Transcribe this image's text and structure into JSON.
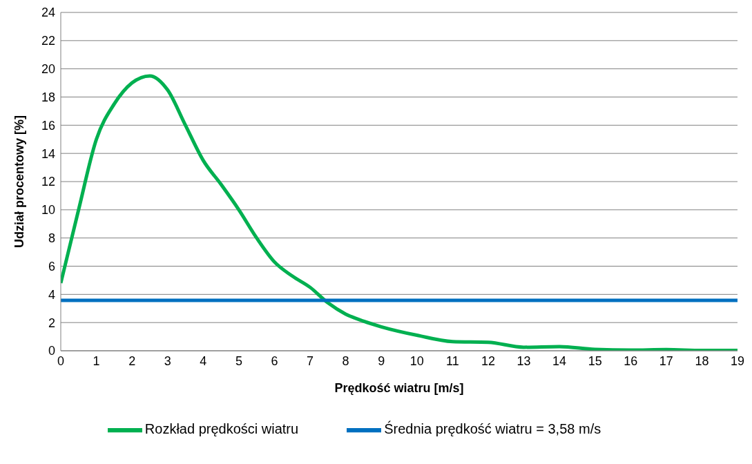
{
  "chart_data": {
    "type": "line",
    "xlabel": "Prędkość wiatru [m/s]",
    "ylabel": "Udział procentowy [%]",
    "series": [
      {
        "name": "Rozkład prędkości wiatru",
        "color": "#00b050",
        "x": [
          0,
          0.5,
          1,
          1.5,
          2,
          2.5,
          3,
          3.5,
          4,
          4.5,
          5,
          5.5,
          6,
          6.5,
          7,
          7.5,
          8,
          8.5,
          9,
          10,
          11,
          12,
          13,
          14,
          15,
          16,
          17,
          18,
          19
        ],
        "values": [
          4.8,
          10,
          15,
          17.5,
          19,
          19.5,
          18.5,
          16,
          13.5,
          11.8,
          10,
          8,
          6.3,
          5.3,
          4.5,
          3.4,
          2.6,
          2.1,
          1.7,
          1.1,
          0.65,
          0.6,
          0.25,
          0.3,
          0.1,
          0.05,
          0.08,
          0.02,
          0.02
        ]
      },
      {
        "name": "Średnia prędkość wiatru = 3,58 m/s",
        "color": "#0070c0",
        "x": [
          0,
          19
        ],
        "values": [
          3.58,
          3.58
        ]
      }
    ],
    "xlim": [
      0,
      19
    ],
    "xticks": [
      0,
      1,
      2,
      3,
      4,
      5,
      6,
      7,
      8,
      9,
      10,
      11,
      12,
      13,
      14,
      15,
      16,
      17,
      18,
      19
    ],
    "ylim": [
      0,
      24
    ],
    "yticks": [
      0,
      2,
      4,
      6,
      8,
      10,
      12,
      14,
      16,
      18,
      20,
      22,
      24
    ],
    "grid": "y",
    "legend": "bottom",
    "marker": "none",
    "line_style": "solid"
  }
}
